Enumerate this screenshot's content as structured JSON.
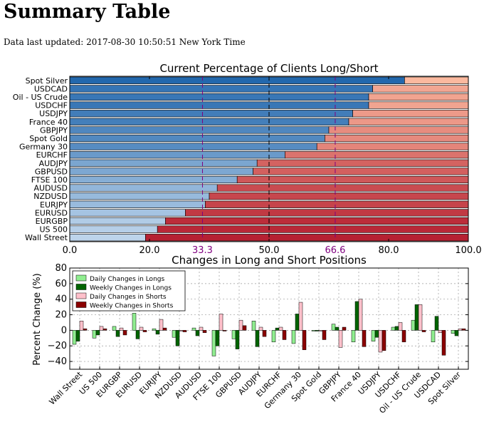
{
  "page": {
    "title": "Summary Table",
    "updated": "Data last updated: 2017-08-30 10:50:51 New York Time"
  },
  "colors": {
    "long_bar_light": "#c6dbef",
    "long_bar_dark": "#2166ac",
    "short_bar_light": "#fcbba1",
    "short_bar_dark": "#b2182b",
    "daily_longs": "#90ee90",
    "weekly_longs": "#006400",
    "daily_shorts": "#ffc0cb",
    "weekly_shorts": "#8b0000",
    "threshold_line": "#800080"
  },
  "chart_data": [
    {
      "type": "bar",
      "orientation": "horizontal",
      "stacked": true,
      "title": "Current Percentage of Clients Long/Short",
      "categories": [
        "Spot Silver",
        "USDCAD",
        "Oil - US Crude",
        "USDCHF",
        "USDJPY",
        "France 40",
        "GBPJPY",
        "Spot Gold",
        "Germany 30",
        "EURCHF",
        "AUDJPY",
        "GBPUSD",
        "FTSE 100",
        "AUDUSD",
        "NZDUSD",
        "EURJPY",
        "EURUSD",
        "EURGBP",
        "US 500",
        "Wall Street"
      ],
      "series": [
        {
          "values": [
            84,
            76,
            75,
            75,
            71,
            70,
            65,
            64,
            62,
            54,
            47,
            46,
            42,
            37,
            35,
            34,
            29,
            24,
            22,
            19
          ]
        },
        {
          "values": [
            16,
            24,
            25,
            25,
            29,
            30,
            35,
            36,
            38,
            46,
            53,
            54,
            58,
            63,
            65,
            66,
            71,
            76,
            78,
            81
          ]
        }
      ],
      "xlim": [
        0,
        100
      ],
      "x_ticks": [
        "0.0",
        "20.0",
        "50.0",
        "80.0",
        "100.0"
      ],
      "reference_lines": [
        {
          "value": 33.3,
          "label": "33.3",
          "color": "#800080",
          "style": "dashed"
        },
        {
          "value": 50,
          "label": "",
          "color": "#000000",
          "style": "dashed"
        },
        {
          "value": 66.6,
          "label": "66.6",
          "color": "#800080",
          "style": "dashed"
        }
      ]
    },
    {
      "type": "bar",
      "title": "Changes in Long and Short Positions",
      "ylabel": "Percent Change (%)",
      "categories": [
        "Wall Street",
        "US 500",
        "EURGBP",
        "EURUSD",
        "EURJPY",
        "NZDUSD",
        "AUDUSD",
        "FTSE 100",
        "GBPUSD",
        "AUDJPY",
        "EURCHF",
        "Germany 30",
        "Spot Gold",
        "GBPJPY",
        "France 40",
        "USDJPY",
        "USDCHF",
        "Oil - US Crude",
        "USDCAD",
        "Spot Silver"
      ],
      "series": [
        {
          "name": "Daily Changes in Longs",
          "values": [
            -18,
            -10,
            5,
            22,
            2,
            -9,
            3,
            -33,
            -11,
            12,
            -15,
            -17,
            -1,
            8,
            -15,
            -14,
            4,
            13,
            -15,
            -4
          ]
        },
        {
          "name": "Weekly Changes in Longs",
          "values": [
            -14,
            -6,
            -8,
            -11,
            -5,
            -20,
            -7,
            -20,
            -24,
            -21,
            3,
            21,
            -1,
            4,
            37,
            -9,
            5,
            33,
            18,
            -7
          ]
        },
        {
          "name": "Daily Changes in Shorts",
          "values": [
            12,
            5,
            3,
            4,
            14,
            -1,
            4,
            21,
            13,
            4,
            4,
            36,
            -1,
            -22,
            40,
            -28,
            10,
            33,
            -3,
            2
          ]
        },
        {
          "name": "Weekly Changes in Shorts",
          "values": [
            2,
            2,
            -6,
            -2,
            3,
            -2,
            -3,
            -1,
            6,
            -8,
            -12,
            -25,
            -12,
            4,
            -21,
            -26,
            -15,
            -2,
            -32,
            2
          ]
        }
      ],
      "ylim": [
        -50,
        80
      ],
      "y_ticks": [
        "−40",
        "−20",
        "0",
        "20",
        "40",
        "60",
        "80"
      ],
      "grid": true,
      "legend_placement": "upper-left"
    }
  ]
}
